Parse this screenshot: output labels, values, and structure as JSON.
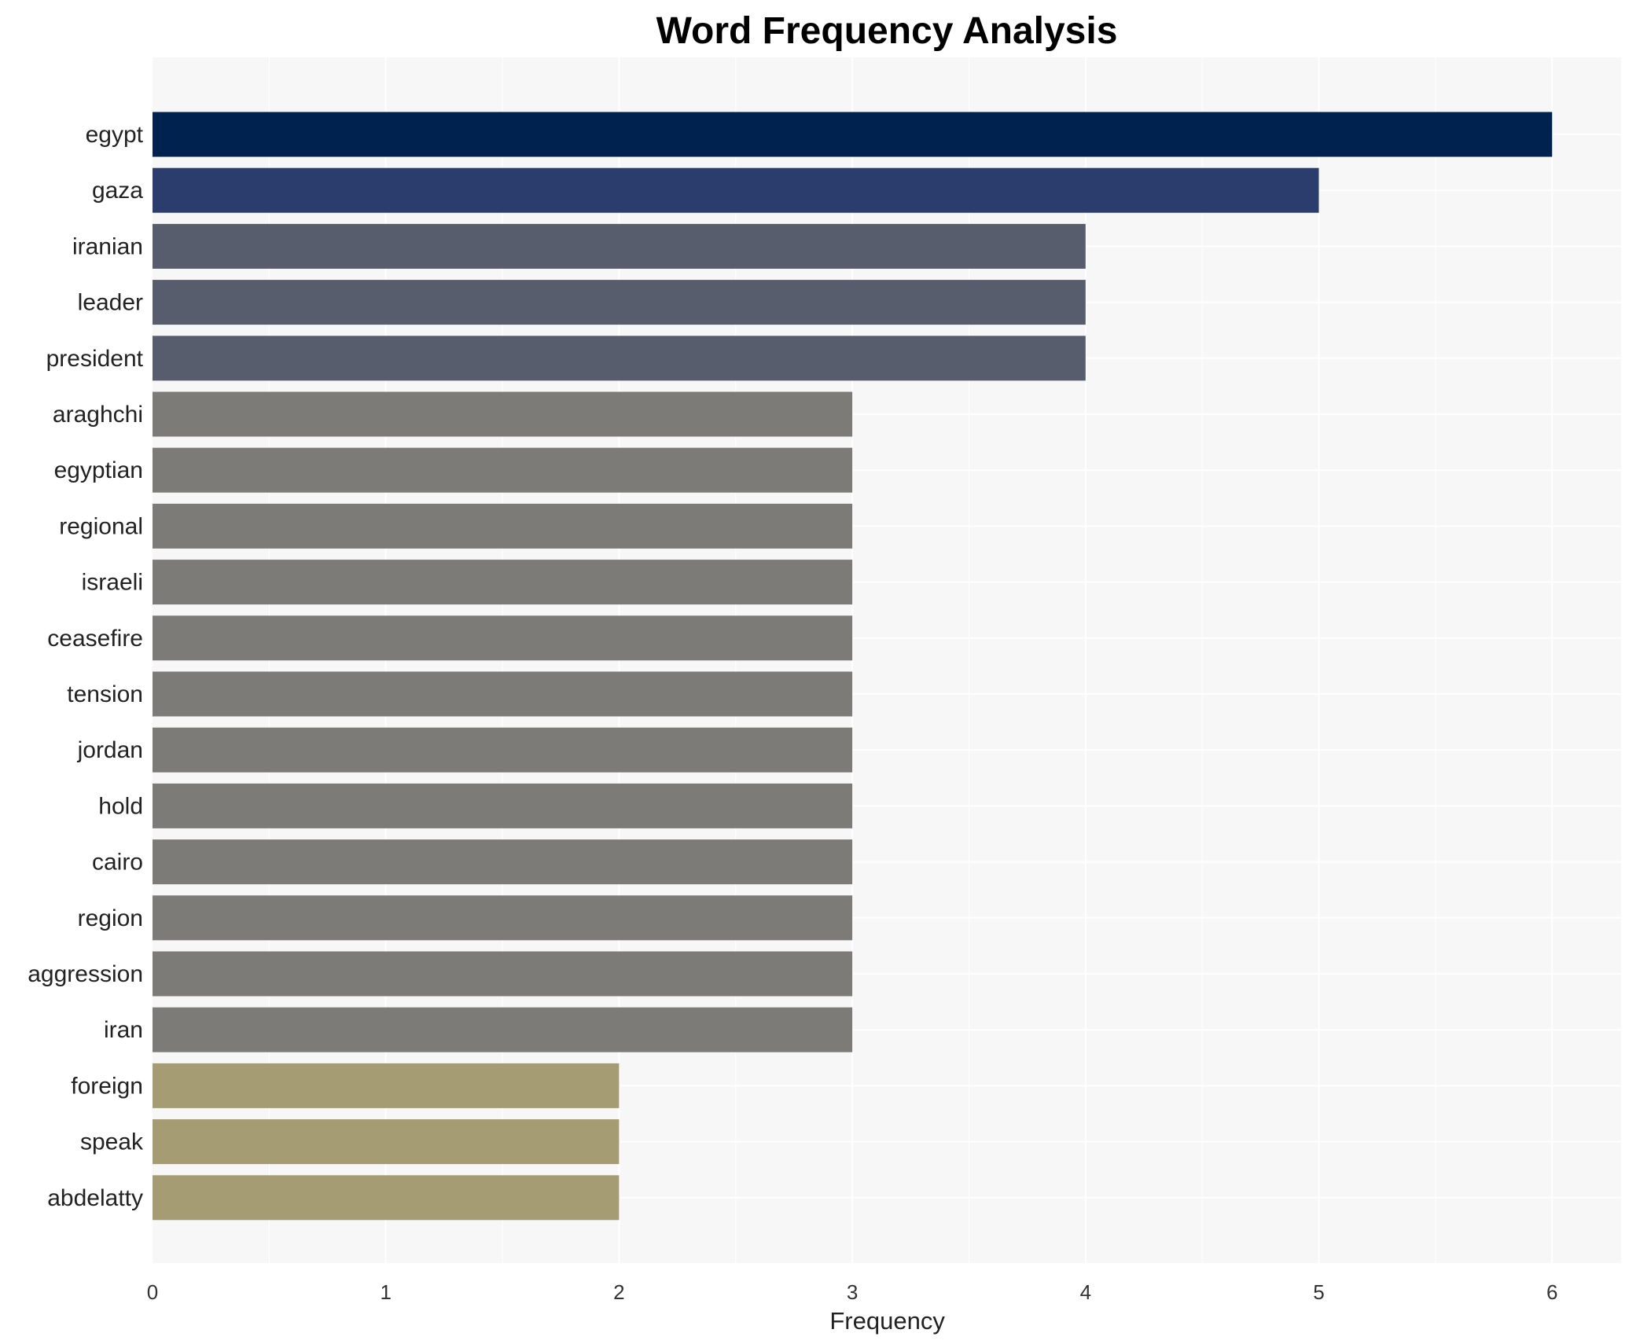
{
  "chart_data": {
    "type": "bar",
    "orientation": "horizontal",
    "title": "Word Frequency Analysis",
    "xlabel": "Frequency",
    "ylabel": "",
    "xlim": [
      0,
      6.3
    ],
    "xticks": [
      0,
      1,
      2,
      3,
      4,
      5,
      6
    ],
    "grid": true,
    "categories": [
      "egypt",
      "gaza",
      "iranian",
      "leader",
      "president",
      "araghchi",
      "egyptian",
      "regional",
      "israeli",
      "ceasefire",
      "tension",
      "jordan",
      "hold",
      "cairo",
      "region",
      "aggression",
      "iran",
      "foreign",
      "speak",
      "abdelatty"
    ],
    "values": [
      6,
      5,
      4,
      4,
      4,
      3,
      3,
      3,
      3,
      3,
      3,
      3,
      3,
      3,
      3,
      3,
      3,
      2,
      2,
      2
    ],
    "colors": {
      "6": "#00224e",
      "5": "#2a3d6c",
      "4": "#575d6d",
      "3": "#7c7b78",
      "2": "#a59c74"
    },
    "background": "#f7f7f7"
  }
}
